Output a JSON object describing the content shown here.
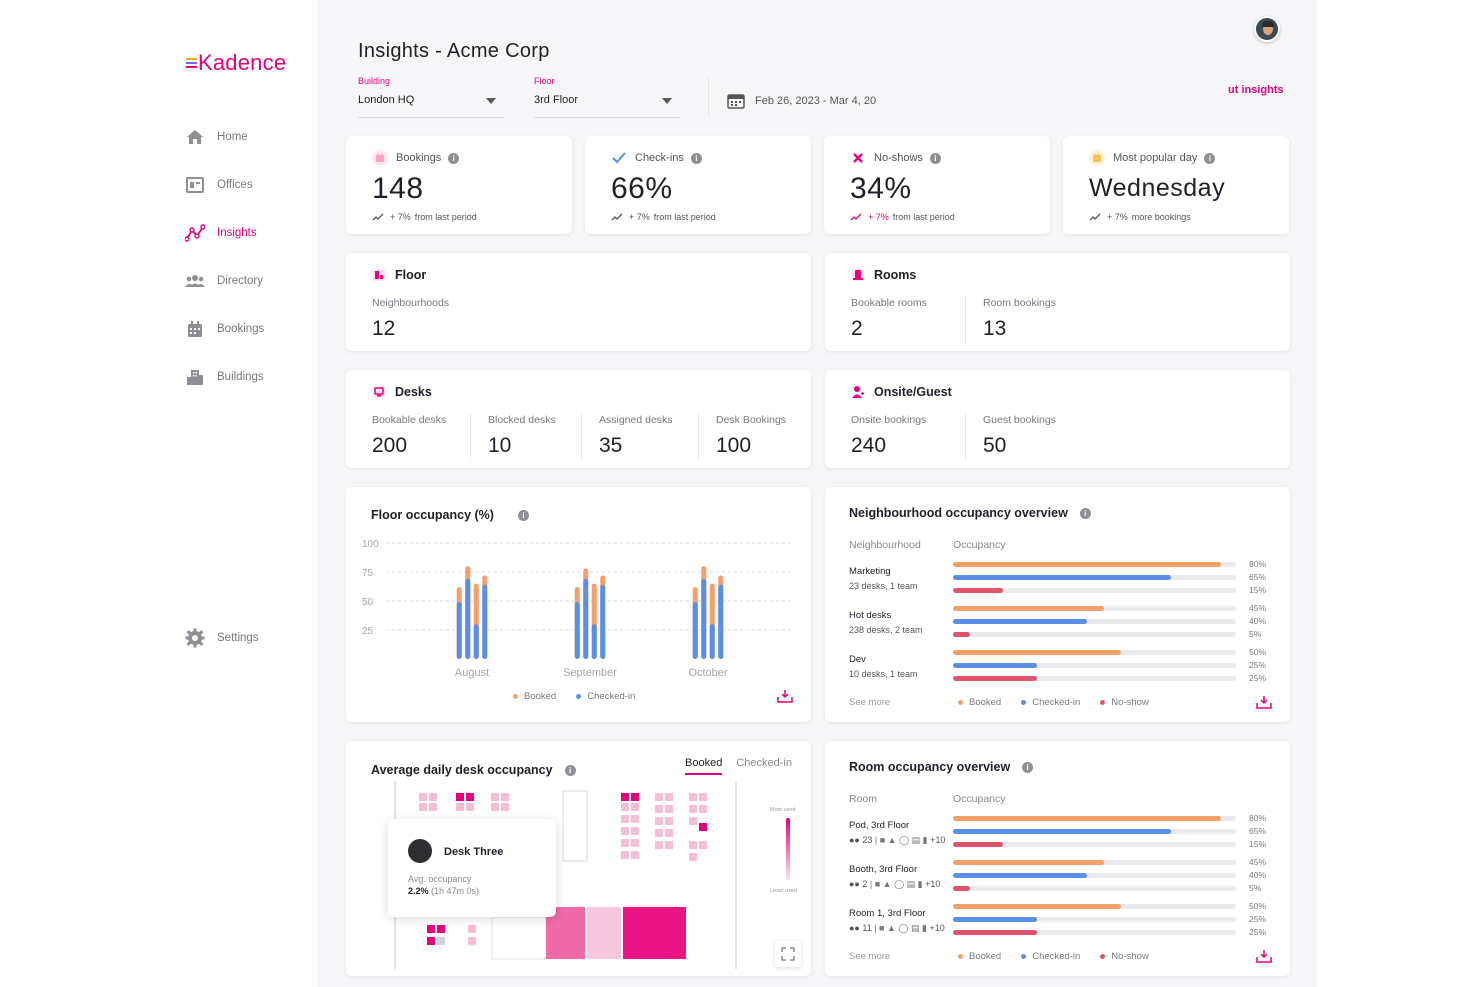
{
  "app": {
    "logo": "Kadence",
    "page_title": "Insights - Acme Corp",
    "export_link": "ut insights"
  },
  "sidebar": {
    "items": [
      {
        "label": "Home",
        "icon": "home-icon"
      },
      {
        "label": "Offices",
        "icon": "offices-icon"
      },
      {
        "label": "Insights",
        "icon": "insights-icon",
        "active": true
      },
      {
        "label": "Directory",
        "icon": "directory-icon"
      },
      {
        "label": "Bookings",
        "icon": "calendar-icon"
      },
      {
        "label": "Buildings",
        "icon": "buildings-icon"
      }
    ],
    "settings_label": "Settings"
  },
  "filters": {
    "building": {
      "label": "Building",
      "value": "London HQ"
    },
    "floor": {
      "label": "Floor",
      "value": "3rd Floor"
    },
    "date_range": "Feb 26, 2023 - Mar 4, 20"
  },
  "stats": {
    "bookings": {
      "label": "Bookings",
      "value": "148",
      "change": "+ 7%",
      "note": "from last period"
    },
    "checkins": {
      "label": "Check-ins",
      "value": "66%",
      "change": "+ 7%",
      "note": "from last period"
    },
    "noshows": {
      "label": "No-shows",
      "value": "34%",
      "change": "+ 7%",
      "note": "from last period"
    },
    "popular": {
      "label": "Most popular day",
      "value": "Wednesday",
      "change": "+ 7%",
      "note": "more bookings"
    }
  },
  "floor": {
    "title": "Floor",
    "neighbourhoods_label": "Neighbourhoods",
    "neighbourhoods_value": "12"
  },
  "rooms": {
    "title": "Rooms",
    "bookable_label": "Bookable rooms",
    "bookable_value": "2",
    "bookings_label": "Room bookings",
    "bookings_value": "13"
  },
  "desks": {
    "title": "Desks",
    "bookable_label": "Bookable desks",
    "bookable_value": "200",
    "blocked_label": "Blocked desks",
    "blocked_value": "10",
    "assigned_label": "Assigned desks",
    "assigned_value": "35",
    "bookings_label": "Desk Bookings",
    "bookings_value": "100"
  },
  "onsite": {
    "title": "Onsite/Guest",
    "onsite_label": "Onsite bookings",
    "onsite_value": "240",
    "guest_label": "Guest bookings",
    "guest_value": "50"
  },
  "floor_occupancy": {
    "title": "Floor occupancy (%)",
    "legend_booked": "Booked",
    "legend_checked": "Checked-in"
  },
  "chart_data": {
    "type": "bar",
    "title": "Floor occupancy (%)",
    "ylim": [
      0,
      100
    ],
    "yticks": [
      "100",
      "75",
      "50",
      "25"
    ],
    "categories": [
      "August",
      "September",
      "October"
    ],
    "series": [
      {
        "name": "Booked",
        "values": [
          [
            62,
            80,
            65,
            72
          ],
          [
            62,
            78,
            65,
            72
          ],
          [
            62,
            80,
            65,
            72
          ]
        ]
      },
      {
        "name": "Checked-in",
        "values": [
          [
            49,
            69,
            30,
            64
          ],
          [
            49,
            69,
            30,
            64
          ],
          [
            49,
            69,
            30,
            64
          ]
        ]
      }
    ],
    "colors": {
      "booked": "#f5a06a",
      "checked": "#5b8ee8"
    }
  },
  "neighbourhood": {
    "title": "Neighbourhood occupancy overview",
    "col1": "Neighbourhood",
    "col2": "Occupancy",
    "rows": [
      {
        "name": "Marketing",
        "sub": "23 desks, 1 team",
        "booked": "80%",
        "checked": "65%",
        "noshow": "15%"
      },
      {
        "name": "Hot desks",
        "sub": "238 desks, 2 team",
        "booked": "45%",
        "checked": "40%",
        "noshow": "5%"
      },
      {
        "name": "Dev",
        "sub": "10 desks, 1 team",
        "booked": "50%",
        "checked": "25%",
        "noshow": "25%"
      }
    ],
    "see_more": "See more",
    "legend_booked": "Booked",
    "legend_checked": "Checked-in",
    "legend_noshow": "No-show"
  },
  "desk_map": {
    "title": "Average daily desk occupancy",
    "tab_booked": "Booked",
    "tab_checked": "Checked-in",
    "most_used": "Most used",
    "least_used": "Least used",
    "tooltip": {
      "name": "Desk Three",
      "label": "Avg. occupancy",
      "value": "2.2%",
      "detail": "(1h 47m 0s)"
    }
  },
  "room_overview": {
    "title": "Room occupancy overview",
    "col1": "Room",
    "col2": "Occupancy",
    "rows": [
      {
        "name": "Pod,",
        "floor": "3rd Floor",
        "count": "23",
        "extra": "+10",
        "booked": "80%",
        "checked": "65%",
        "noshow": "15%"
      },
      {
        "name": "Booth,",
        "floor": "3rd Floor",
        "count": "2",
        "extra": "+10",
        "booked": "45%",
        "checked": "40%",
        "noshow": "5%"
      },
      {
        "name": "Room 1,",
        "floor": "3rd Floor",
        "count": "11",
        "extra": "+10",
        "booked": "50%",
        "checked": "25%",
        "noshow": "25%"
      }
    ],
    "see_more": "See more",
    "legend_booked": "Booked",
    "legend_checked": "Checked-in",
    "legend_noshow": "No-show"
  },
  "colors": {
    "accent": "#e6007e",
    "booked": "#f5a06a",
    "checked": "#5b8ee8",
    "noshow": "#e0546b"
  }
}
